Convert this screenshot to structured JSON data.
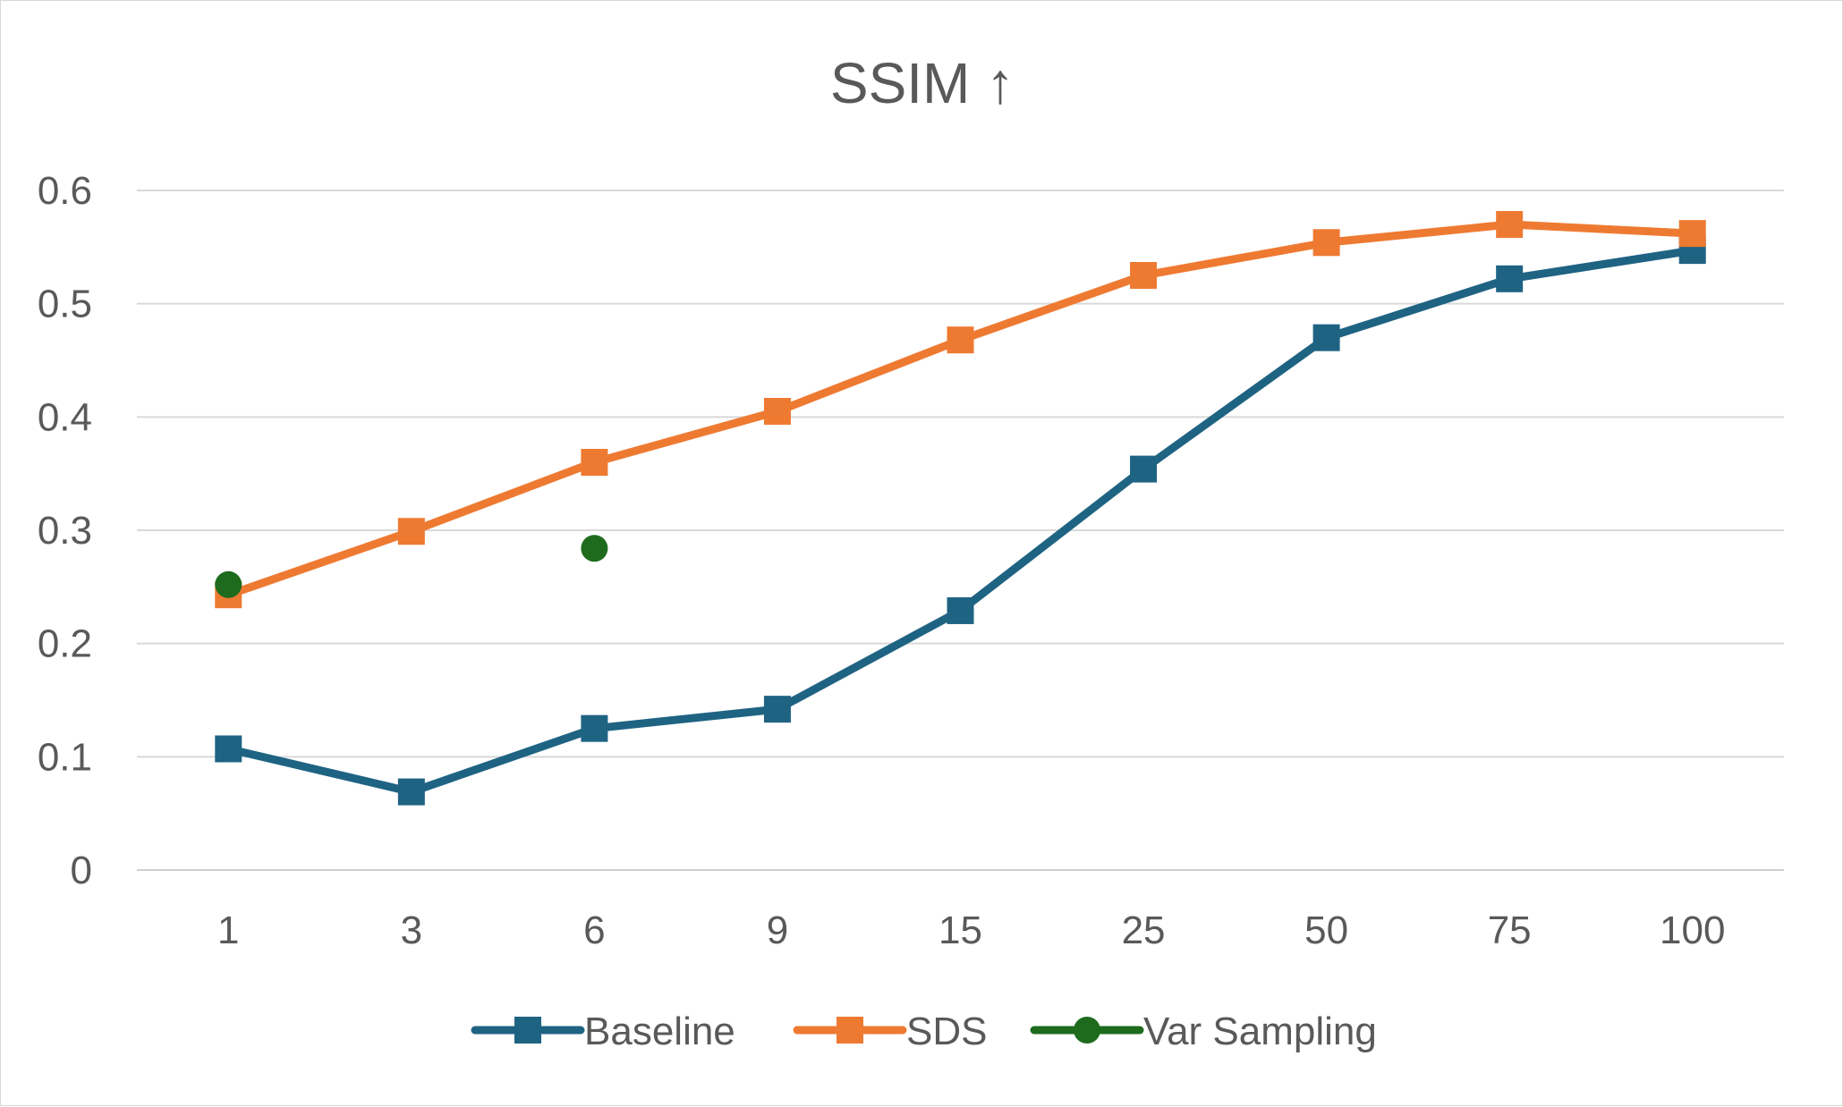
{
  "chart_data": {
    "type": "line",
    "title": "SSIM ↑",
    "xlabel": "",
    "ylabel": "",
    "categories": [
      "1",
      "3",
      "6",
      "9",
      "15",
      "25",
      "50",
      "75",
      "100"
    ],
    "ylim": [
      0,
      0.6
    ],
    "yticks": [
      "0",
      "0.1",
      "0.2",
      "0.3",
      "0.4",
      "0.5",
      "0.6"
    ],
    "grid": true,
    "legend_position": "bottom",
    "series": [
      {
        "name": "Baseline",
        "color": "#1f6383",
        "marker": "square",
        "values": [
          0.107,
          0.069,
          0.125,
          0.142,
          0.229,
          0.354,
          0.47,
          0.522,
          0.547
        ]
      },
      {
        "name": "SDS",
        "color": "#ee7a32",
        "marker": "square",
        "values": [
          0.243,
          0.299,
          0.36,
          0.405,
          0.468,
          0.525,
          0.554,
          0.57,
          0.562
        ]
      },
      {
        "name": "Var Sampling",
        "color": "#1e6b1e",
        "marker": "circle",
        "values": [
          0.252,
          null,
          0.284,
          null,
          null,
          null,
          null,
          null,
          null
        ]
      }
    ]
  }
}
